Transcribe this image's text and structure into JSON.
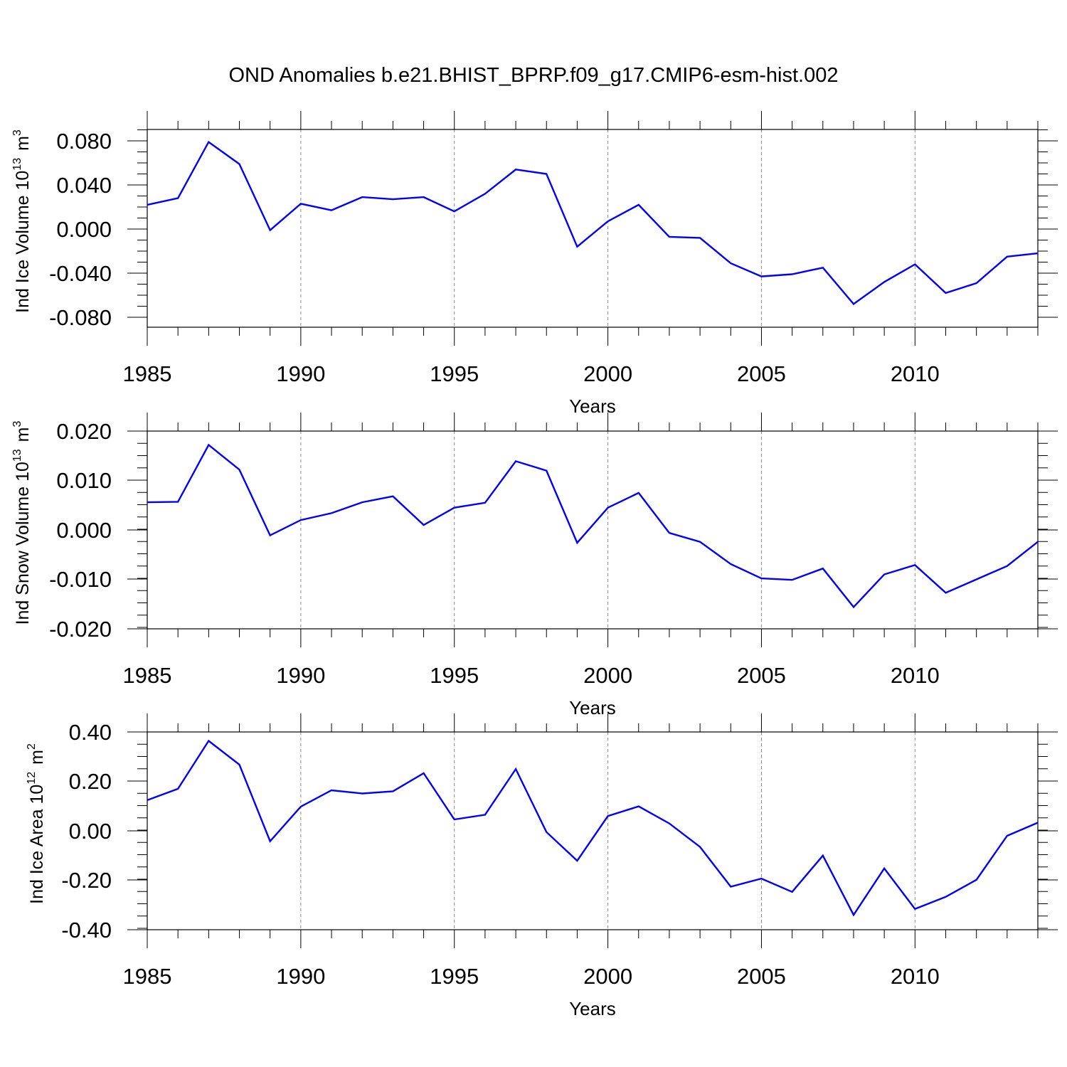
{
  "title": "OND Anomalies b.e21.BHIST_BPRP.f09_g17.CMIP6-esm-hist.002",
  "line_color": "#0000ff",
  "chart_data": [
    {
      "type": "line",
      "xlabel": "Years",
      "ylabel_main": "Ind Ice Volume 10",
      "ylabel_exp": "13",
      "ylabel_unit": "m",
      "ylabel_unit_exp": "3",
      "xlim": [
        1985,
        2014
      ],
      "ylim": [
        -0.09,
        0.09
      ],
      "xticks": [
        1985,
        1990,
        1995,
        2000,
        2005,
        2010
      ],
      "xtick_labels": [
        "1985",
        "1990",
        "1995",
        "2000",
        "2005",
        "2010"
      ],
      "yticks": [
        0.08,
        0.04,
        0.0,
        -0.04,
        -0.08
      ],
      "ytick_labels": [
        "0.080",
        "0.040",
        "0.000",
        "-0.040",
        "-0.080"
      ],
      "grid": "vertical dashed at major x ticks",
      "x": [
        1985,
        1986,
        1987,
        1988,
        1989,
        1990,
        1991,
        1992,
        1993,
        1994,
        1995,
        1996,
        1997,
        1998,
        1999,
        2000,
        2001,
        2002,
        2003,
        2004,
        2005,
        2006,
        2007,
        2008,
        2009,
        2010,
        2011,
        2012,
        2013,
        2014
      ],
      "values": [
        0.022,
        0.028,
        0.079,
        0.059,
        -0.001,
        0.023,
        0.017,
        0.029,
        0.027,
        0.029,
        0.016,
        0.032,
        0.054,
        0.05,
        -0.016,
        0.007,
        0.022,
        -0.007,
        -0.008,
        -0.031,
        -0.043,
        -0.041,
        -0.035,
        -0.068,
        -0.048,
        -0.032,
        -0.058,
        -0.049,
        -0.025,
        -0.022
      ]
    },
    {
      "type": "line",
      "xlabel": "Years",
      "ylabel_main": "Ind Snow Volume 10",
      "ylabel_exp": "13",
      "ylabel_unit": "m",
      "ylabel_unit_exp": "3",
      "xlim": [
        1985,
        2014
      ],
      "ylim": [
        -0.02,
        0.02
      ],
      "xticks": [
        1985,
        1990,
        1995,
        2000,
        2005,
        2010
      ],
      "xtick_labels": [
        "1985",
        "1990",
        "1995",
        "2000",
        "2005",
        "2010"
      ],
      "yticks": [
        0.02,
        0.01,
        0.0,
        -0.01,
        -0.02
      ],
      "ytick_labels": [
        "0.020",
        "0.010",
        "0.000",
        "-0.010",
        "-0.020"
      ],
      "grid": "vertical dashed at major x ticks",
      "x": [
        1985,
        1986,
        1987,
        1988,
        1989,
        1990,
        1991,
        1992,
        1993,
        1994,
        1995,
        1996,
        1997,
        1998,
        1999,
        2000,
        2001,
        2002,
        2003,
        2004,
        2005,
        2006,
        2007,
        2008,
        2009,
        2010,
        2011,
        2012,
        2013,
        2014
      ],
      "values": [
        0.0056,
        0.0057,
        0.0172,
        0.0122,
        -0.0011,
        0.002,
        0.0034,
        0.0056,
        0.0068,
        0.001,
        0.0045,
        0.0055,
        0.0139,
        0.012,
        -0.0026,
        0.0045,
        0.0075,
        -0.0006,
        -0.0024,
        -0.0069,
        -0.0098,
        -0.0101,
        -0.0078,
        -0.0156,
        -0.009,
        -0.0071,
        -0.0127,
        -0.01,
        -0.0073,
        -0.0024
      ]
    },
    {
      "type": "line",
      "xlabel": "Years",
      "ylabel_main": "Ind Ice Area 10",
      "ylabel_exp": "12",
      "ylabel_unit": "m",
      "ylabel_unit_exp": "2",
      "xlim": [
        1985,
        2014
      ],
      "ylim": [
        -0.4,
        0.4
      ],
      "xticks": [
        1985,
        1990,
        1995,
        2000,
        2005,
        2010
      ],
      "xtick_labels": [
        "1985",
        "1990",
        "1995",
        "2000",
        "2005",
        "2010"
      ],
      "yticks": [
        0.4,
        0.2,
        0.0,
        -0.2,
        -0.4
      ],
      "ytick_labels": [
        "0.40",
        "0.20",
        "0.00",
        "-0.20",
        "-0.40"
      ],
      "grid": "vertical dashed at major x ticks",
      "x": [
        1985,
        1986,
        1987,
        1988,
        1989,
        1990,
        1991,
        1992,
        1993,
        1994,
        1995,
        1996,
        1997,
        1998,
        1999,
        2000,
        2001,
        2002,
        2003,
        2004,
        2005,
        2006,
        2007,
        2008,
        2009,
        2010,
        2011,
        2012,
        2013,
        2014
      ],
      "values": [
        0.124,
        0.17,
        0.364,
        0.268,
        -0.042,
        0.098,
        0.164,
        0.151,
        0.16,
        0.233,
        0.046,
        0.065,
        0.25,
        -0.005,
        -0.121,
        0.06,
        0.099,
        0.03,
        -0.065,
        -0.226,
        -0.193,
        -0.247,
        -0.1,
        -0.34,
        -0.152,
        -0.316,
        -0.267,
        -0.198,
        -0.02,
        0.033
      ]
    }
  ]
}
